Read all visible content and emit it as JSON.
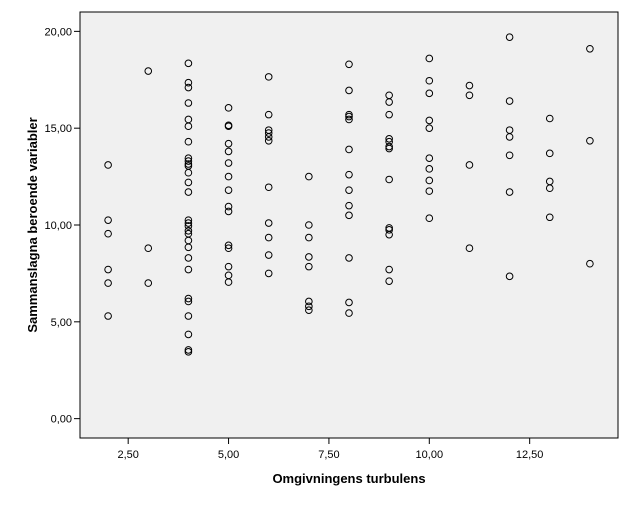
{
  "chart_data": {
    "type": "scatter",
    "title": "",
    "xlabel": "Omgivningens turbulens",
    "ylabel": "Sammanslagna beroende variabler",
    "xlim": [
      1.3,
      14.7
    ],
    "ylim": [
      -1.0,
      21.0
    ],
    "x_ticks": [
      2.5,
      5.0,
      7.5,
      10.0,
      12.5
    ],
    "x_tick_labels": [
      "2,50",
      "5,00",
      "7,50",
      "10,00",
      "12,50"
    ],
    "y_ticks": [
      0,
      5,
      10,
      15,
      20
    ],
    "y_tick_labels": [
      "0,00",
      "5,00",
      "10,00",
      "15,00",
      "20,00"
    ],
    "grid": false,
    "colors": {
      "plot_background": "#f0f0f0",
      "marker_stroke": "#000000",
      "axis": "#000000"
    },
    "points": [
      [
        2,
        13.1
      ],
      [
        2,
        10.25
      ],
      [
        2,
        9.55
      ],
      [
        2,
        7.7
      ],
      [
        2,
        7.0
      ],
      [
        2,
        5.3
      ],
      [
        3,
        17.95
      ],
      [
        3,
        8.8
      ],
      [
        3,
        7.0
      ],
      [
        4,
        18.35
      ],
      [
        4,
        17.35
      ],
      [
        4,
        17.1
      ],
      [
        4,
        16.3
      ],
      [
        4,
        15.45
      ],
      [
        4,
        15.1
      ],
      [
        4,
        14.3
      ],
      [
        4,
        13.45
      ],
      [
        4,
        13.3
      ],
      [
        4,
        13.15
      ],
      [
        4,
        13.05
      ],
      [
        4,
        12.7
      ],
      [
        4,
        12.2
      ],
      [
        4,
        11.7
      ],
      [
        4,
        10.25
      ],
      [
        4,
        10.1
      ],
      [
        4,
        9.95
      ],
      [
        4,
        9.7
      ],
      [
        4,
        9.55
      ],
      [
        4,
        9.2
      ],
      [
        4,
        8.85
      ],
      [
        4,
        8.3
      ],
      [
        4,
        7.7
      ],
      [
        4,
        6.2
      ],
      [
        4,
        6.05
      ],
      [
        4,
        5.3
      ],
      [
        4,
        4.35
      ],
      [
        4,
        3.55
      ],
      [
        4,
        3.45
      ],
      [
        5,
        16.05
      ],
      [
        5,
        15.15
      ],
      [
        5,
        15.1
      ],
      [
        5,
        14.2
      ],
      [
        5,
        13.8
      ],
      [
        5,
        13.2
      ],
      [
        5,
        12.5
      ],
      [
        5,
        11.8
      ],
      [
        5,
        10.95
      ],
      [
        5,
        10.7
      ],
      [
        5,
        8.95
      ],
      [
        5,
        8.8
      ],
      [
        5,
        7.85
      ],
      [
        5,
        7.4
      ],
      [
        5,
        7.05
      ],
      [
        6,
        17.65
      ],
      [
        6,
        15.7
      ],
      [
        6,
        14.9
      ],
      [
        6,
        14.75
      ],
      [
        6,
        14.55
      ],
      [
        6,
        14.35
      ],
      [
        6,
        11.95
      ],
      [
        6,
        10.1
      ],
      [
        6,
        9.35
      ],
      [
        6,
        8.45
      ],
      [
        6,
        7.5
      ],
      [
        7,
        12.5
      ],
      [
        7,
        10.0
      ],
      [
        7,
        9.35
      ],
      [
        7,
        8.35
      ],
      [
        7,
        7.85
      ],
      [
        7,
        6.05
      ],
      [
        7,
        5.8
      ],
      [
        7,
        5.6
      ],
      [
        8,
        18.3
      ],
      [
        8,
        16.95
      ],
      [
        8,
        15.7
      ],
      [
        8,
        15.6
      ],
      [
        8,
        15.45
      ],
      [
        8,
        13.9
      ],
      [
        8,
        12.6
      ],
      [
        8,
        11.8
      ],
      [
        8,
        11.0
      ],
      [
        8,
        10.5
      ],
      [
        8,
        8.3
      ],
      [
        8,
        6.0
      ],
      [
        8,
        5.45
      ],
      [
        9,
        16.7
      ],
      [
        9,
        16.35
      ],
      [
        9,
        15.7
      ],
      [
        9,
        14.45
      ],
      [
        9,
        14.3
      ],
      [
        9,
        14.05
      ],
      [
        9,
        13.95
      ],
      [
        9,
        12.35
      ],
      [
        9,
        9.85
      ],
      [
        9,
        9.75
      ],
      [
        9,
        9.5
      ],
      [
        9,
        7.7
      ],
      [
        9,
        7.1
      ],
      [
        10,
        18.6
      ],
      [
        10,
        17.45
      ],
      [
        10,
        16.8
      ],
      [
        10,
        15.4
      ],
      [
        10,
        15.0
      ],
      [
        10,
        13.45
      ],
      [
        10,
        12.9
      ],
      [
        10,
        12.3
      ],
      [
        10,
        11.75
      ],
      [
        10,
        10.35
      ],
      [
        11,
        17.2
      ],
      [
        11,
        16.7
      ],
      [
        11,
        13.1
      ],
      [
        11,
        8.8
      ],
      [
        12,
        19.7
      ],
      [
        12,
        16.4
      ],
      [
        12,
        14.9
      ],
      [
        12,
        14.55
      ],
      [
        12,
        13.6
      ],
      [
        12,
        11.7
      ],
      [
        12,
        7.35
      ],
      [
        13,
        15.5
      ],
      [
        13,
        13.7
      ],
      [
        13,
        12.25
      ],
      [
        13,
        11.9
      ],
      [
        13,
        10.4
      ],
      [
        14,
        19.1
      ],
      [
        14,
        14.35
      ],
      [
        14,
        8.0
      ]
    ]
  }
}
